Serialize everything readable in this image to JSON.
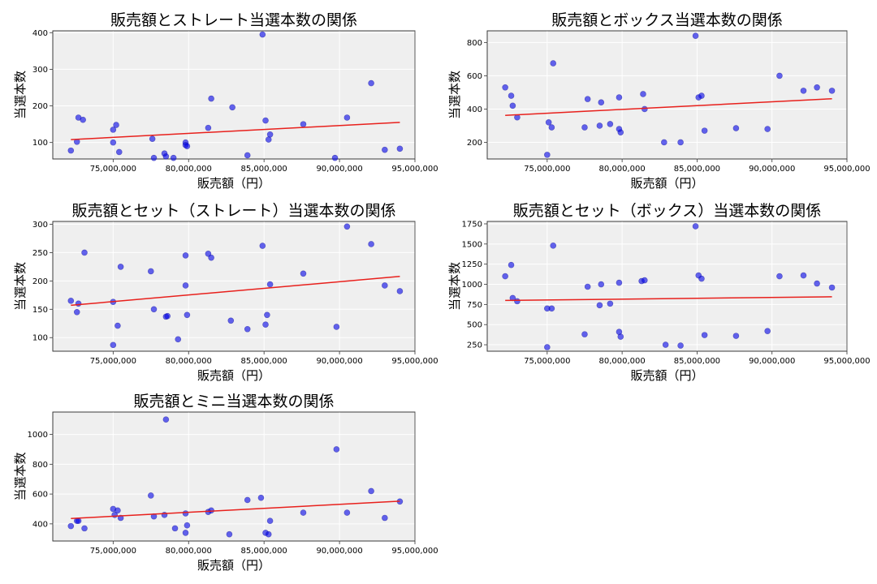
{
  "chart_data": [
    {
      "type": "scatter",
      "title": "販売額とストレート当選本数の関係",
      "xlabel": "販売額（円）",
      "ylabel": "当選本数",
      "xlim": [
        71000000,
        95000000
      ],
      "ylim": [
        55,
        405
      ],
      "xticks": [
        75000000,
        80000000,
        85000000,
        90000000,
        95000000
      ],
      "xtick_labels": [
        "75,000,000",
        "80,000,000",
        "85,000,000",
        "90,000,000",
        "95,000,000"
      ],
      "yticks": [
        100,
        200,
        300,
        400
      ],
      "ytick_labels": [
        "100",
        "200",
        "300",
        "400"
      ],
      "grid": true,
      "x": [
        72200000,
        72600000,
        72700000,
        73000000,
        75000000,
        75000000,
        75200000,
        75400000,
        77600000,
        77700000,
        78400000,
        78500000,
        79000000,
        79800000,
        79800000,
        79900000,
        81300000,
        81500000,
        82900000,
        83900000,
        84900000,
        85100000,
        85300000,
        85400000,
        87600000,
        89700000,
        90500000,
        92100000,
        93000000,
        94000000
      ],
      "y": [
        78,
        102,
        168,
        162,
        135,
        100,
        148,
        74,
        110,
        58,
        70,
        62,
        58,
        100,
        93,
        90,
        140,
        220,
        196,
        65,
        395,
        160,
        108,
        122,
        150,
        58,
        168,
        262,
        80,
        83
      ],
      "trend": {
        "x": [
          72200000,
          94000000
        ],
        "y": [
          108,
          155
        ]
      }
    },
    {
      "type": "scatter",
      "title": "販売額とボックス当選本数の関係",
      "xlabel": "販売額（円）",
      "ylabel": "当選本数",
      "xlim": [
        71000000,
        95000000
      ],
      "ylim": [
        100,
        870
      ],
      "xticks": [
        75000000,
        80000000,
        85000000,
        90000000,
        95000000
      ],
      "xtick_labels": [
        "75,000,000",
        "80,000,000",
        "85,000,000",
        "90,000,000",
        "95,000,000"
      ],
      "yticks": [
        200,
        400,
        600,
        800
      ],
      "ytick_labels": [
        "200",
        "400",
        "600",
        "800"
      ],
      "grid": true,
      "x": [
        72200000,
        72600000,
        72700000,
        73000000,
        75000000,
        75100000,
        75300000,
        75400000,
        77500000,
        77700000,
        78500000,
        78600000,
        79200000,
        79800000,
        79900000,
        79800000,
        81400000,
        81500000,
        82800000,
        83900000,
        84900000,
        85100000,
        85300000,
        85500000,
        87600000,
        89700000,
        90500000,
        92100000,
        93000000,
        94000000
      ],
      "y": [
        530,
        480,
        420,
        350,
        125,
        320,
        290,
        675,
        290,
        460,
        300,
        440,
        310,
        470,
        260,
        280,
        490,
        400,
        200,
        200,
        840,
        470,
        480,
        270,
        285,
        280,
        600,
        510,
        530,
        510
      ],
      "trend": {
        "x": [
          72200000,
          94000000
        ],
        "y": [
          362,
          462
        ]
      }
    },
    {
      "type": "scatter",
      "title": "販売額とセット（ストレート）当選本数の関係",
      "xlabel": "販売額（円）",
      "ylabel": "当選本数",
      "xlim": [
        71000000,
        95000000
      ],
      "ylim": [
        76,
        305
      ],
      "xticks": [
        75000000,
        80000000,
        85000000,
        90000000,
        95000000
      ],
      "xtick_labels": [
        "75,000,000",
        "80,000,000",
        "85,000,000",
        "90,000,000",
        "95,000,000"
      ],
      "yticks": [
        100,
        150,
        200,
        250,
        300
      ],
      "ytick_labels": [
        "100",
        "150",
        "200",
        "250",
        "300"
      ],
      "grid": true,
      "x": [
        72200000,
        72600000,
        72700000,
        73100000,
        75000000,
        75000000,
        75300000,
        75500000,
        77500000,
        77700000,
        78500000,
        78600000,
        79300000,
        79800000,
        79800000,
        79900000,
        81300000,
        81500000,
        82800000,
        83900000,
        84900000,
        85100000,
        85200000,
        85400000,
        87600000,
        89800000,
        90500000,
        92100000,
        93000000,
        94000000
      ],
      "y": [
        165,
        145,
        160,
        250,
        163,
        87,
        121,
        225,
        217,
        150,
        137,
        138,
        97,
        245,
        192,
        140,
        248,
        241,
        130,
        115,
        262,
        123,
        140,
        194,
        213,
        119,
        296,
        265,
        192,
        182
      ],
      "trend": {
        "x": [
          72200000,
          94000000
        ],
        "y": [
          157,
          208
        ]
      }
    },
    {
      "type": "scatter",
      "title": "販売額とセット（ボックス）当選本数の関係",
      "xlabel": "販売額（円）",
      "ylabel": "当選本数",
      "xlim": [
        71000000,
        95000000
      ],
      "ylim": [
        170,
        1780
      ],
      "xticks": [
        75000000,
        80000000,
        85000000,
        90000000,
        95000000
      ],
      "xtick_labels": [
        "75,000,000",
        "80,000,000",
        "85,000,000",
        "90,000,000",
        "95,000,000"
      ],
      "yticks": [
        250,
        500,
        750,
        1000,
        1250,
        1500,
        1750
      ],
      "ytick_labels": [
        "250",
        "500",
        "750",
        "1000",
        "1250",
        "1500",
        "1750"
      ],
      "grid": true,
      "x": [
        72200000,
        72600000,
        72700000,
        73000000,
        75000000,
        75000000,
        75300000,
        75400000,
        77500000,
        77700000,
        78500000,
        78600000,
        79200000,
        79800000,
        79900000,
        79800000,
        81300000,
        81500000,
        82900000,
        83900000,
        84900000,
        85100000,
        85300000,
        85500000,
        87600000,
        89700000,
        90500000,
        92100000,
        93000000,
        94000000
      ],
      "y": [
        1100,
        1240,
        830,
        790,
        700,
        220,
        700,
        1480,
        380,
        970,
        740,
        1000,
        760,
        1020,
        350,
        410,
        1040,
        1050,
        250,
        240,
        1720,
        1110,
        1070,
        370,
        360,
        420,
        1100,
        1110,
        1010,
        960
      ],
      "trend": {
        "x": [
          72200000,
          94000000
        ],
        "y": [
          800,
          845
        ]
      }
    },
    {
      "type": "scatter",
      "title": "販売額とミニ当選本数の関係",
      "xlabel": "販売額（円）",
      "ylabel": "当選本数",
      "xlim": [
        71000000,
        95000000
      ],
      "ylim": [
        285,
        1150
      ],
      "xticks": [
        75000000,
        80000000,
        85000000,
        90000000,
        95000000
      ],
      "xtick_labels": [
        "75,000,000",
        "80,000,000",
        "85,000,000",
        "90,000,000",
        "95,000,000"
      ],
      "yticks": [
        400,
        600,
        800,
        1000
      ],
      "ytick_labels": [
        "400",
        "600",
        "800",
        "1000"
      ],
      "grid": true,
      "x": [
        72200000,
        72600000,
        72700000,
        73100000,
        75000000,
        75100000,
        75300000,
        75500000,
        77500000,
        77700000,
        78400000,
        78500000,
        79100000,
        79800000,
        79900000,
        79800000,
        81300000,
        81500000,
        82700000,
        83900000,
        84800000,
        85100000,
        85300000,
        85400000,
        87600000,
        89800000,
        90500000,
        92100000,
        93000000,
        94000000
      ],
      "y": [
        385,
        420,
        420,
        370,
        500,
        460,
        490,
        440,
        590,
        450,
        460,
        1100,
        370,
        470,
        390,
        340,
        480,
        490,
        330,
        560,
        575,
        340,
        330,
        420,
        475,
        900,
        475,
        620,
        440,
        550
      ],
      "trend": {
        "x": [
          72200000,
          94000000
        ],
        "y": [
          436,
          552
        ]
      }
    }
  ]
}
